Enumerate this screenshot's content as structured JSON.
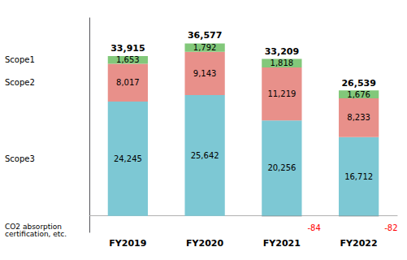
{
  "chart_data": {
    "type": "bar",
    "stacked": true,
    "categories": [
      "FY2019",
      "FY2020",
      "FY2021",
      "FY2022"
    ],
    "series": [
      {
        "name": "Scope3",
        "color": "#7DC8D4",
        "values": [
          24245,
          25642,
          20256,
          16712
        ],
        "value_labels": [
          "24,245",
          "25,642",
          "20,256",
          "16,712"
        ]
      },
      {
        "name": "Scope2",
        "color": "#E8908A",
        "values": [
          8017,
          9143,
          11219,
          8233
        ],
        "value_labels": [
          "8,017",
          "9,143",
          "11,219",
          "8,233"
        ]
      },
      {
        "name": "Scope1",
        "color": "#82C87A",
        "values": [
          1653,
          1792,
          1818,
          1676
        ],
        "value_labels": [
          "1,653",
          "1,792",
          "1,818",
          "1,676"
        ]
      },
      {
        "name": "CO2 absorption\ncertification, etc.",
        "color": "#666666",
        "values": [
          null,
          null,
          -84,
          -82
        ]
      }
    ],
    "totals": {
      "values": [
        33915,
        36577,
        33209,
        26539
      ],
      "value_labels": [
        "33,915",
        "36,577",
        "33,209",
        "26,539"
      ]
    },
    "ylim": [
      -3500,
      42000
    ],
    "data_labels": true,
    "tick_labels": "x",
    "grid": false
  }
}
